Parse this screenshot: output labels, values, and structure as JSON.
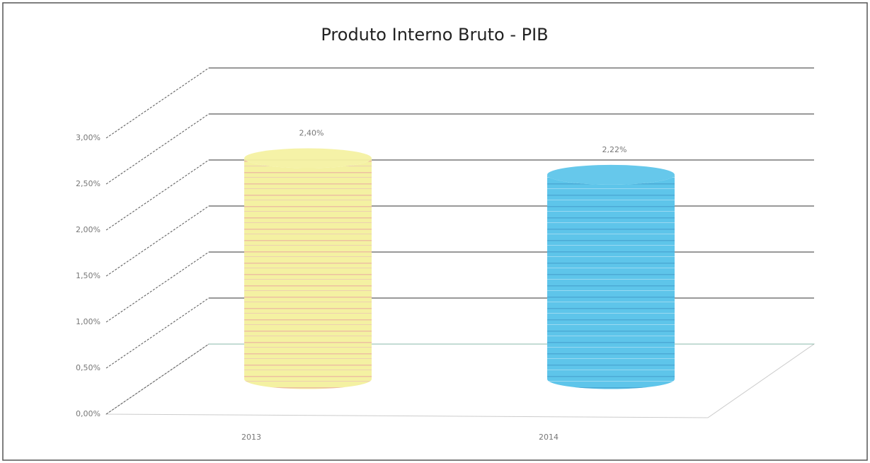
{
  "chart_data": {
    "type": "cylinder",
    "title": "Produto Interno Bruto - PIB",
    "categories": [
      "2013",
      "2014"
    ],
    "values": [
      2.4,
      2.22
    ],
    "value_labels": [
      "2,40%",
      "2,22%"
    ],
    "colors": [
      "#f4f1a2",
      "#5ec5ea"
    ],
    "ylim": [
      0,
      3
    ],
    "yticks": [
      {
        "value": 0,
        "label": "0,00%"
      },
      {
        "value": 0.5,
        "label": "0,50%"
      },
      {
        "value": 1,
        "label": "1,00%"
      },
      {
        "value": 1.5,
        "label": "1,50%"
      },
      {
        "value": 2,
        "label": "2,00%"
      },
      {
        "value": 2.5,
        "label": "2,50%"
      },
      {
        "value": 3,
        "label": "3,00%"
      }
    ],
    "grid": true
  }
}
